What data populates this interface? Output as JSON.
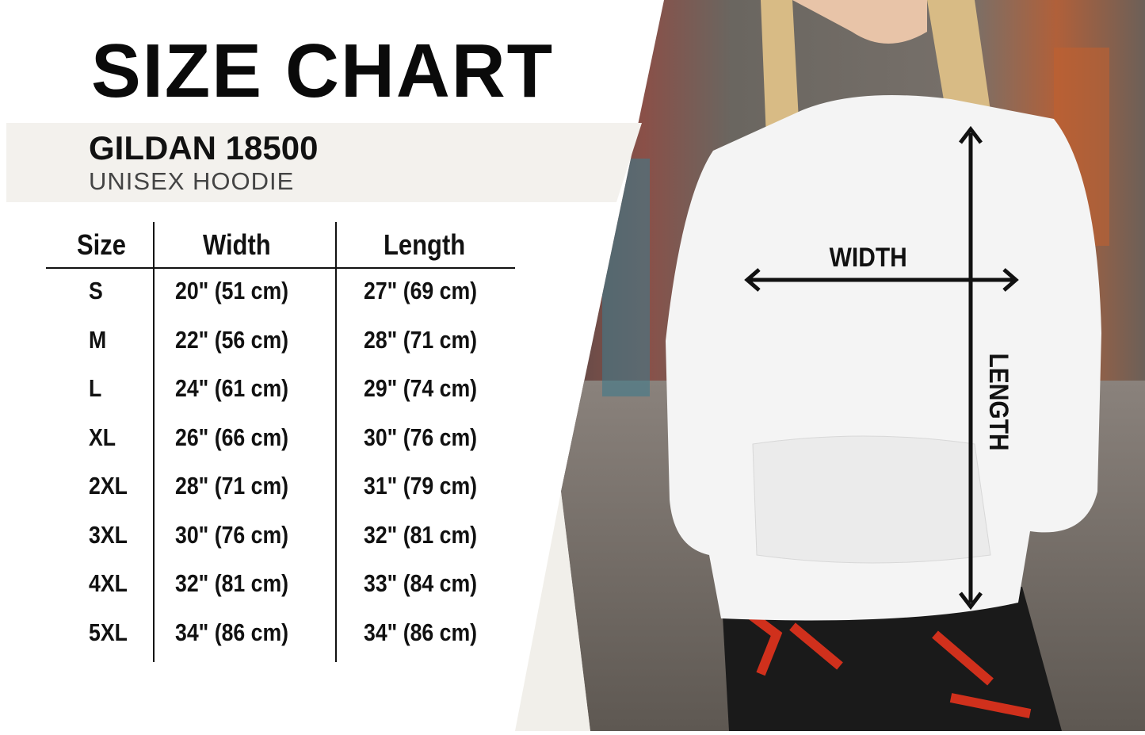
{
  "title": "SIZE CHART",
  "product": {
    "brand": "GILDAN 18500",
    "type": "UNISEX HOODIE"
  },
  "table": {
    "headers": [
      "Size",
      "Width",
      "Length"
    ],
    "rows": [
      [
        "S",
        "20\" (51 cm)",
        "27\" (69 cm)"
      ],
      [
        "M",
        "22\" (56 cm)",
        "28\" (71 cm)"
      ],
      [
        "L",
        "24\" (61 cm)",
        "29\" (74 cm)"
      ],
      [
        "XL",
        "26\" (66 cm)",
        "30\" (76 cm)"
      ],
      [
        "2XL",
        "28\" (71 cm)",
        "31\" (79 cm)"
      ],
      [
        "3XL",
        "30\" (76 cm)",
        "32\" (81 cm)"
      ],
      [
        "4XL",
        "32\" (81 cm)",
        "33\" (84 cm)"
      ],
      [
        "5XL",
        "34\" (86 cm)",
        "34\" (86 cm)"
      ]
    ]
  },
  "diagram": {
    "width_label": "WIDTH",
    "length_label": "LENGTH"
  },
  "colors": {
    "banner": "#f3f1ed",
    "text": "#111111",
    "hoodie": "#f4f4f4"
  }
}
